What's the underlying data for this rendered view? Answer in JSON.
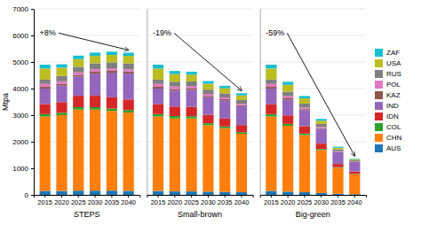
{
  "chart_data": [
    {
      "type": "bar",
      "stacked": true,
      "xlabel": "STEPS",
      "ylabel": "Mtpa",
      "categories": [
        "2015",
        "2020",
        "2025",
        "2030",
        "2035",
        "2040"
      ],
      "series": [
        {
          "name": "AUS",
          "values": [
            150,
            150,
            160,
            160,
            160,
            150
          ]
        },
        {
          "name": "CHN",
          "values": [
            2800,
            2850,
            3050,
            3050,
            3000,
            2950
          ]
        },
        {
          "name": "COL",
          "values": [
            90,
            90,
            90,
            90,
            90,
            90
          ]
        },
        {
          "name": "IDN",
          "values": [
            380,
            400,
            430,
            430,
            420,
            400
          ]
        },
        {
          "name": "IND",
          "values": [
            580,
            620,
            720,
            830,
            930,
            980
          ]
        },
        {
          "name": "KAZ",
          "values": [
            65,
            65,
            65,
            70,
            70,
            70
          ]
        },
        {
          "name": "POL",
          "values": [
            110,
            100,
            95,
            90,
            85,
            80
          ]
        },
        {
          "name": "RUS",
          "values": [
            160,
            200,
            210,
            230,
            230,
            230
          ]
        },
        {
          "name": "USA",
          "values": [
            420,
            310,
            290,
            280,
            280,
            280
          ]
        },
        {
          "name": "ZAF",
          "values": [
            145,
            130,
            130,
            125,
            125,
            120
          ]
        }
      ],
      "ylim": [
        0,
        7000
      ],
      "yticks": [
        0,
        1000,
        2000,
        3000,
        4000,
        5000,
        6000,
        7000
      ],
      "grid": true,
      "legend": "right",
      "annotations": [
        "+8%"
      ]
    },
    {
      "type": "bar",
      "stacked": true,
      "xlabel": "Small-brown",
      "categories": [
        "2015",
        "2020",
        "2025",
        "2030",
        "2035",
        "2040"
      ],
      "series": [
        {
          "name": "AUS",
          "values": [
            150,
            130,
            130,
            120,
            110,
            100
          ]
        },
        {
          "name": "CHN",
          "values": [
            2800,
            2750,
            2750,
            2500,
            2400,
            2200
          ]
        },
        {
          "name": "COL",
          "values": [
            90,
            85,
            80,
            72,
            65,
            58
          ]
        },
        {
          "name": "IDN",
          "values": [
            380,
            360,
            350,
            320,
            295,
            270
          ]
        },
        {
          "name": "IND",
          "values": [
            580,
            600,
            640,
            660,
            690,
            710
          ]
        },
        {
          "name": "KAZ",
          "values": [
            65,
            58,
            55,
            50,
            45,
            38
          ]
        },
        {
          "name": "POL",
          "values": [
            110,
            95,
            88,
            75,
            62,
            52
          ]
        },
        {
          "name": "RUS",
          "values": [
            160,
            180,
            175,
            165,
            152,
            140
          ]
        },
        {
          "name": "USA",
          "values": [
            420,
            290,
            255,
            220,
            195,
            175
          ]
        },
        {
          "name": "ZAF",
          "values": [
            145,
            115,
            112,
            102,
            90,
            80
          ]
        }
      ],
      "ylim": [
        0,
        7000
      ],
      "yticks": [
        0,
        1000,
        2000,
        3000,
        4000,
        5000,
        6000,
        7000
      ],
      "grid": true,
      "tick_labels": "x",
      "annotations": [
        "-19%"
      ]
    },
    {
      "type": "bar",
      "stacked": true,
      "xlabel": "Big-green",
      "categories": [
        "2015",
        "2020",
        "2025",
        "2030",
        "2035",
        "2040"
      ],
      "series": [
        {
          "name": "AUS",
          "values": [
            150,
            120,
            100,
            70,
            40,
            25
          ]
        },
        {
          "name": "CHN",
          "values": [
            2800,
            2480,
            2150,
            1620,
            980,
            750
          ]
        },
        {
          "name": "COL",
          "values": [
            90,
            72,
            58,
            38,
            22,
            12
          ]
        },
        {
          "name": "IDN",
          "values": [
            380,
            320,
            275,
            200,
            120,
            88
          ]
        },
        {
          "name": "IND",
          "values": [
            580,
            590,
            600,
            560,
            440,
            360
          ]
        },
        {
          "name": "KAZ",
          "values": [
            65,
            52,
            42,
            28,
            18,
            12
          ]
        },
        {
          "name": "POL",
          "values": [
            110,
            82,
            62,
            42,
            22,
            12
          ]
        },
        {
          "name": "RUS",
          "values": [
            160,
            165,
            148,
            115,
            72,
            48
          ]
        },
        {
          "name": "USA",
          "values": [
            420,
            260,
            195,
            120,
            62,
            35
          ]
        },
        {
          "name": "ZAF",
          "values": [
            145,
            112,
            90,
            65,
            38,
            22
          ]
        }
      ],
      "ylim": [
        0,
        7000
      ],
      "yticks": [
        0,
        1000,
        2000,
        3000,
        4000,
        5000,
        6000,
        7000
      ],
      "grid": true,
      "tick_labels": "x",
      "annotations": [
        "-59%"
      ]
    }
  ]
}
